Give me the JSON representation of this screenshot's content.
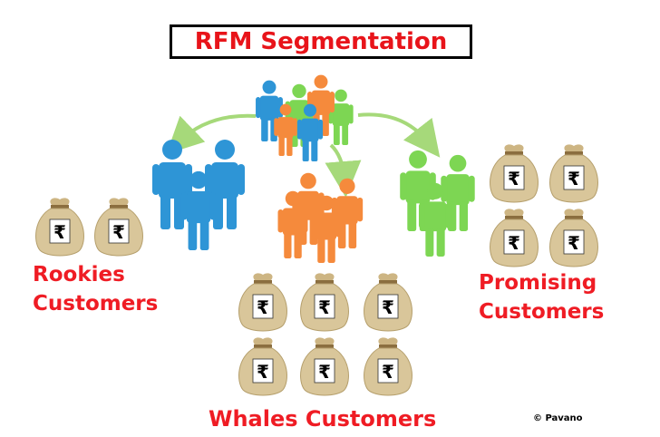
{
  "title": "RFM Segmentation",
  "segments": {
    "rookies": {
      "line1": "Rookies",
      "line2": "Customers"
    },
    "promising": {
      "line1": "Promising",
      "line2": "Customers"
    },
    "whales": {
      "label": "Whales Customers"
    }
  },
  "credit": "© Pavano",
  "currency_symbol": "₹",
  "colors": {
    "title_text": "#e8141a",
    "label_text": "#ef1c24",
    "blue_people": "#2e95d6",
    "orange_people": "#f58a3c",
    "green_people": "#7dd653",
    "arrow": "#a6d97a",
    "money_bag": "#d9c69a"
  },
  "icons": {
    "money_bag": "money-bag-icon",
    "person": "person-icon"
  }
}
